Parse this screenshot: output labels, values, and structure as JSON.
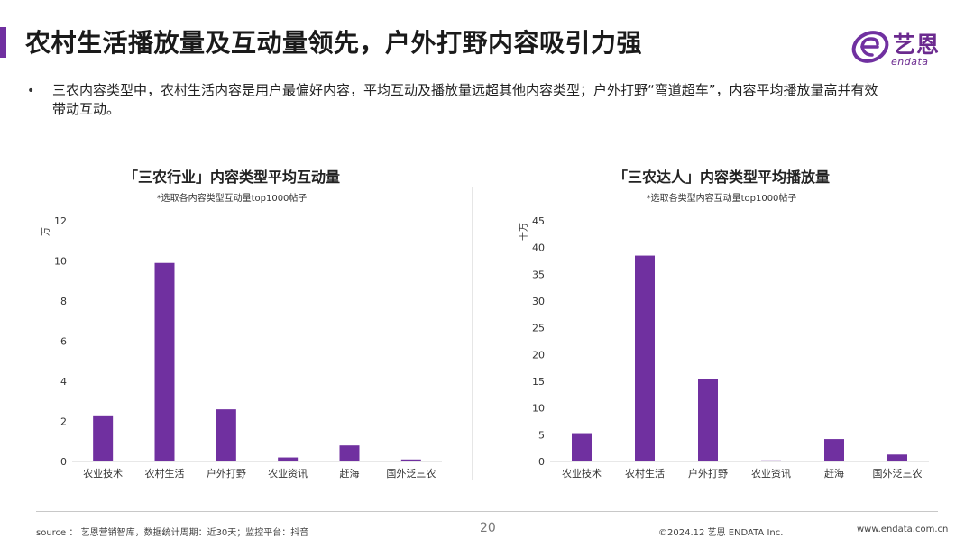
{
  "title": "农村生活播放量及互动量领先，户外打野内容吸引力强",
  "logo": {
    "cn": "艺恩",
    "en": "endata"
  },
  "bullet_text": "三农内容类型中，农村生活内容是用户最偏好内容，平均互动及播放量远超其他内容类型；户外打野“弯道超车”，内容平均播放量高并有效带动互动。",
  "colors": {
    "accent": "#7030a0",
    "bar": "#7030a0"
  },
  "chart_data": [
    {
      "type": "bar",
      "title": "「三农行业」内容类型平均互动量",
      "note": "*选取各内容类型互动量top1000帖子",
      "ylabel": "万",
      "ylim": [
        0,
        12
      ],
      "yticks": [
        0,
        2,
        4,
        6,
        8,
        10,
        12
      ],
      "categories": [
        "农业技术",
        "农村生活",
        "户外打野",
        "农业资讯",
        "赶海",
        "国外泛三农"
      ],
      "values": [
        2.3,
        9.9,
        2.6,
        0.2,
        0.8,
        0.1
      ]
    },
    {
      "type": "bar",
      "title": "「三农达人」内容类型平均播放量",
      "note": "*选取各类型内容互动量top1000帖子",
      "ylabel": "十万",
      "ylim": [
        0,
        45
      ],
      "yticks": [
        0,
        5,
        10,
        15,
        20,
        25,
        30,
        35,
        40,
        45
      ],
      "categories": [
        "农业技术",
        "农村生活",
        "户外打野",
        "农业资讯",
        "赶海",
        "国外泛三农"
      ],
      "values": [
        5.3,
        38.5,
        15.4,
        0.2,
        4.2,
        1.3
      ]
    }
  ],
  "footer": {
    "source": "source ： 艺恩营销智库，数据统计周期：近30天；监控平台：抖音",
    "page": "20",
    "copyright": "©2024.12  艺恩 ENDATA Inc.",
    "website": "www.endata.com.cn"
  }
}
